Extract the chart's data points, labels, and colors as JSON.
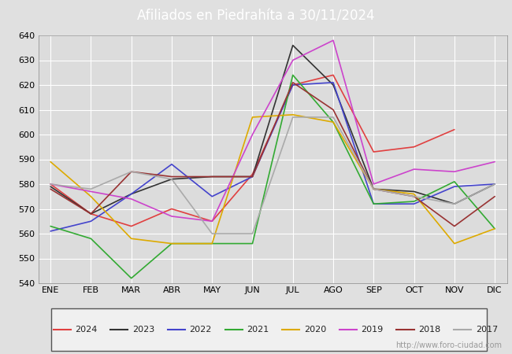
{
  "title": "Afiliados en Piedrahíta a 30/11/2024",
  "title_color": "#ffffff",
  "title_bg_color": "#4472c4",
  "xlabel": "",
  "ylabel": "",
  "ylim": [
    540,
    640
  ],
  "yticks": [
    540,
    550,
    560,
    570,
    580,
    590,
    600,
    610,
    620,
    630,
    640
  ],
  "months": [
    "ENE",
    "FEB",
    "MAR",
    "ABR",
    "MAY",
    "JUN",
    "JUL",
    "AGO",
    "SEP",
    "OCT",
    "NOV",
    "DIC"
  ],
  "watermark": "http://www.foro-ciudad.com",
  "series": {
    "2024": {
      "color": "#e04040",
      "data": [
        580,
        568,
        563,
        570,
        565,
        584,
        620,
        624,
        593,
        595,
        602,
        null
      ]
    },
    "2023": {
      "color": "#333333",
      "data": [
        579,
        568,
        576,
        582,
        583,
        583,
        636,
        620,
        578,
        577,
        572,
        580
      ]
    },
    "2022": {
      "color": "#4444cc",
      "data": [
        561,
        565,
        576,
        588,
        575,
        583,
        620,
        621,
        572,
        572,
        579,
        580
      ]
    },
    "2021": {
      "color": "#33aa33",
      "data": [
        563,
        558,
        542,
        556,
        556,
        556,
        624,
        605,
        572,
        573,
        581,
        562
      ]
    },
    "2020": {
      "color": "#ddaa00",
      "data": [
        589,
        575,
        558,
        556,
        556,
        607,
        608,
        605,
        578,
        576,
        556,
        562
      ]
    },
    "2019": {
      "color": "#cc44cc",
      "data": [
        580,
        577,
        574,
        567,
        565,
        600,
        630,
        638,
        580,
        586,
        585,
        589
      ]
    },
    "2018": {
      "color": "#993333",
      "data": [
        578,
        568,
        585,
        583,
        583,
        583,
        621,
        610,
        578,
        575,
        563,
        575
      ]
    },
    "2017": {
      "color": "#aaaaaa",
      "data": [
        580,
        578,
        585,
        582,
        560,
        560,
        607,
        607,
        578,
        575,
        572,
        580
      ]
    }
  },
  "legend_order": [
    "2024",
    "2023",
    "2022",
    "2021",
    "2020",
    "2019",
    "2018",
    "2017"
  ],
  "bg_color": "#e0e0e0",
  "plot_bg_color": "#dcdcdc",
  "grid_color": "#ffffff",
  "font_size": 8,
  "title_fontsize": 12
}
